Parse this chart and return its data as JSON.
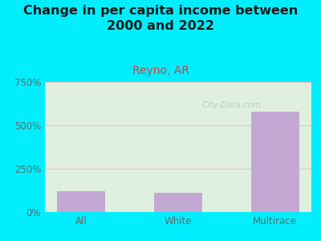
{
  "title": "Change in per capita income between\n2000 and 2022",
  "subtitle": "Reyno, AR",
  "categories": [
    "All",
    "White",
    "Multirace"
  ],
  "values": [
    120,
    110,
    580
  ],
  "bar_color": "#c4a8d4",
  "background_outer": "#00eeff",
  "background_plot": "#dff0df",
  "grid_color": "#e8c0c0",
  "title_color": "#1a1a1a",
  "subtitle_color": "#cc4444",
  "tick_label_color": "#666666",
  "ylim": [
    0,
    750
  ],
  "yticks": [
    0,
    250,
    500,
    750
  ],
  "ytick_labels": [
    "0%",
    "250%",
    "500%",
    "750%"
  ],
  "title_fontsize": 11.5,
  "subtitle_fontsize": 10,
  "watermark": "City-Data.com"
}
